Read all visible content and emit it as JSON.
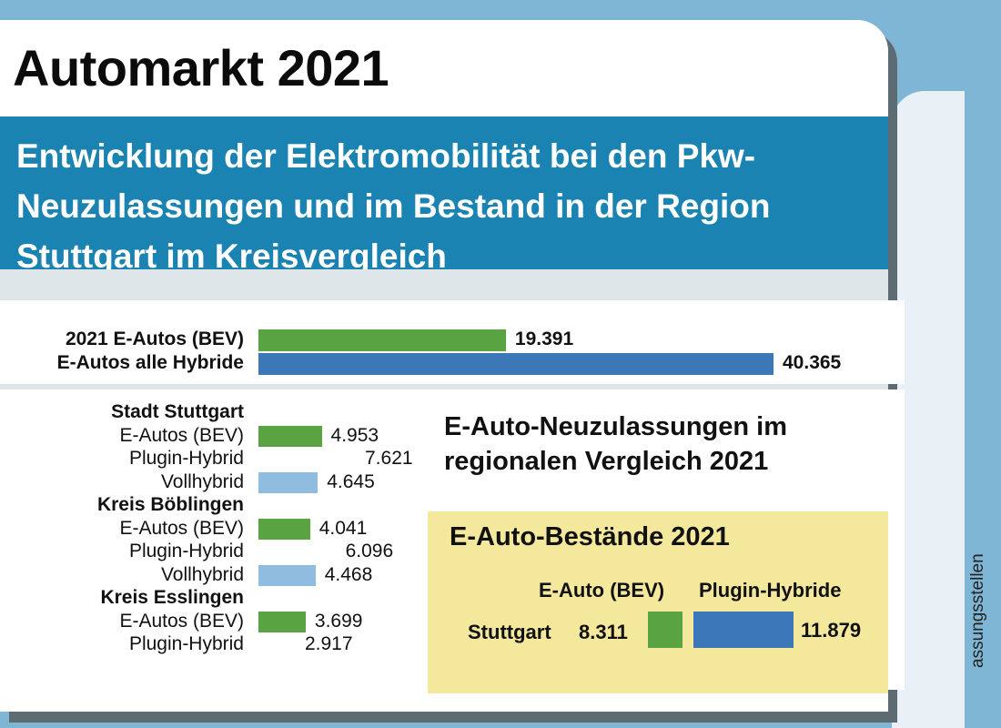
{
  "header": {
    "title": "Automarkt 2021",
    "subtitle": "Entwicklung der Elektromobilität bei den Pkw-Neuzulassungen und im Bestand in der Region Stuttgart im Kreisvergleich"
  },
  "side_text": "assungsstellen",
  "colors": {
    "bev": "#5aa342",
    "plugin": "#3c78b8",
    "vollhybrid": "#8fbcdf",
    "banner": "#1a83b2",
    "highlight": "#f4e89c"
  },
  "chart_data": [
    {
      "type": "bar",
      "orientation": "horizontal",
      "categories": [
        "2021 E-Autos (BEV)",
        "E-Autos alle Hybride"
      ],
      "values": [
        19391,
        40365
      ],
      "value_labels": [
        "19.391",
        "40.365"
      ]
    },
    {
      "type": "bar",
      "orientation": "horizontal",
      "title": "E-Auto-Neuzulassungen im regionalen Vergleich 2021",
      "groups": [
        {
          "name": "Stadt Stuttgart",
          "items": [
            {
              "label": "E-Autos (BEV)",
              "value": 4953,
              "value_label": "4.953",
              "kind": "bev"
            },
            {
              "label": "Plugin-Hybrid",
              "value": 7621,
              "value_label": "7.621",
              "kind": "plugin"
            },
            {
              "label": "Vollhybrid",
              "value": 4645,
              "value_label": "4.645",
              "kind": "voll"
            }
          ]
        },
        {
          "name": "Kreis Böblingen",
          "items": [
            {
              "label": "E-Autos (BEV)",
              "value": 4041,
              "value_label": "4.041",
              "kind": "bev"
            },
            {
              "label": "Plugin-Hybrid",
              "value": 6096,
              "value_label": "6.096",
              "kind": "plugin"
            },
            {
              "label": "Vollhybrid",
              "value": 4468,
              "value_label": "4.468",
              "kind": "voll"
            }
          ]
        },
        {
          "name": "Kreis Esslingen",
          "items": [
            {
              "label": "E-Autos (BEV)",
              "value": 3699,
              "value_label": "3.699",
              "kind": "bev"
            },
            {
              "label": "Plugin-Hybrid",
              "value": 2917,
              "value_label": "2.917",
              "kind": "plugin"
            }
          ]
        }
      ]
    },
    {
      "type": "bar",
      "orientation": "horizontal",
      "title": "E-Auto-Bestände 2021",
      "series_names": [
        "E-Auto (BEV)",
        "Plugin-Hybride"
      ],
      "rows": [
        {
          "label": "Stuttgart",
          "bev": 8311,
          "bev_label": "8.311",
          "plugin": 11879,
          "plugin_label": "11.879"
        }
      ]
    }
  ]
}
